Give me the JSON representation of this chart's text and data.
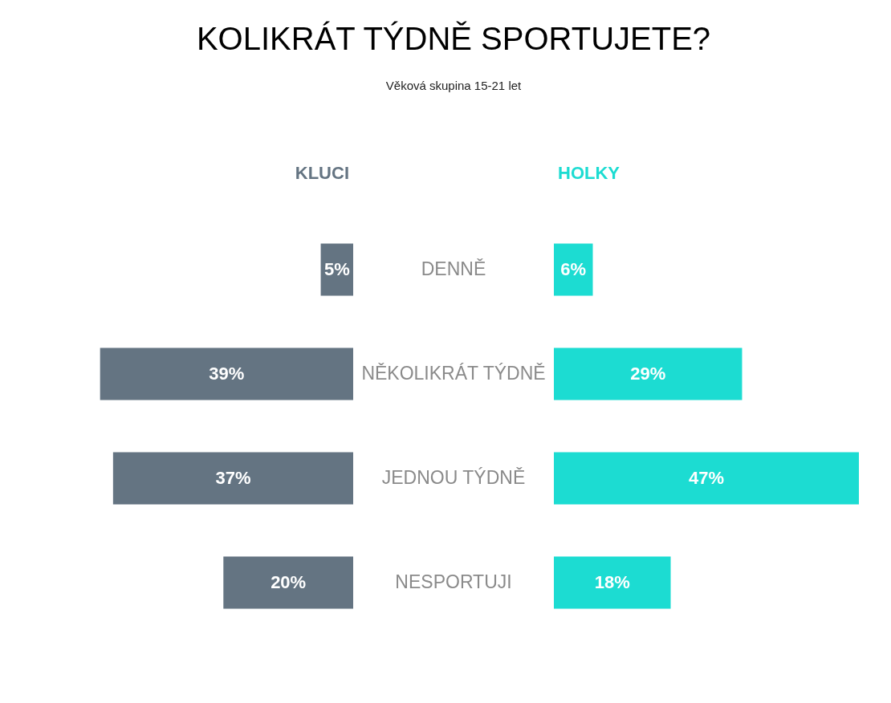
{
  "chart_data": [
    {
      "type": "bar",
      "orientation": "horizontal",
      "title": "KOLIKRÁT TÝDNĚ SPORTUJETE?",
      "subtitle": "Věková skupina 15-21 let",
      "categories": [
        "DENNĚ",
        "NĚKOLIKRÁT TÝDNĚ",
        "JEDNOU TÝDNĚ",
        "NESPORTUJI"
      ],
      "series": [
        {
          "name": "KLUCI",
          "color": "#647482",
          "values": [
            5,
            39,
            37,
            20
          ],
          "value_labels": [
            "5%",
            "39%",
            "37%",
            "20%"
          ]
        }
      ]
    },
    {
      "type": "bar",
      "orientation": "horizontal",
      "tick_labels": false,
      "categories": [
        null,
        null,
        null,
        null
      ],
      "series": [
        {
          "name": "HOLKY",
          "color": "#1cdcd2",
          "values": [
            6,
            29,
            47,
            18
          ],
          "value_labels": [
            "6%",
            "29%",
            "47%",
            "18%"
          ]
        }
      ]
    }
  ]
}
